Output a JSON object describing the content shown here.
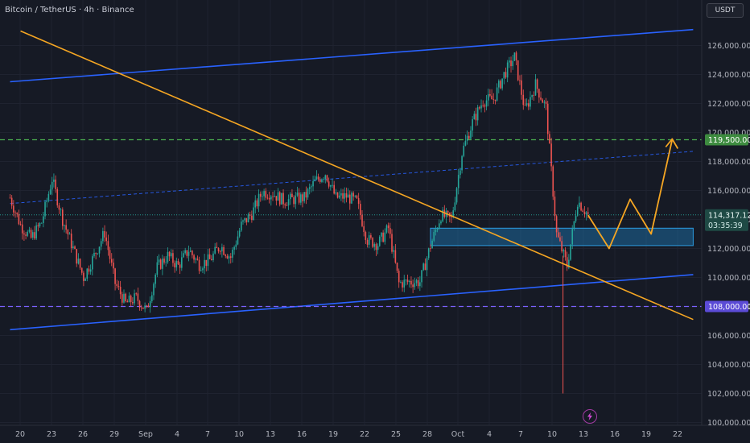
{
  "title": "Bitcoin / TetherUS · 4h · Binance",
  "currency_button": "USDT",
  "colors": {
    "background": "#161a25",
    "up": "#26a69a",
    "down": "#ef5350",
    "channel": "#2962ff",
    "trendline": "#f5a623",
    "support_zone": "#1c7bb8",
    "level_green": "#4caf50",
    "level_purple": "#7b61ff"
  },
  "chart_data": {
    "type": "candlestick",
    "title": "Bitcoin / TetherUS · 4h · Binance",
    "y_ticks": [
      "100,000.00",
      "102,000.00",
      "104,000.00",
      "106,000.00",
      "108,000.00",
      "110,000.00",
      "112,000.00",
      "114,000.00",
      "116,000.00",
      "118,000.00",
      "120,000.00",
      "122,000.00",
      "124,000.00",
      "126,000.00"
    ],
    "x_ticks": [
      "20",
      "23",
      "26",
      "29",
      "Sep",
      "4",
      "7",
      "10",
      "13",
      "16",
      "19",
      "22",
      "25",
      "28",
      "Oct",
      "4",
      "7",
      "10",
      "13",
      "16",
      "19",
      "22"
    ],
    "ylim": [
      99800,
      128200
    ],
    "price_path": [
      [
        "Aug 19",
        115500
      ],
      [
        "Aug 20",
        113600
      ],
      [
        "Aug 21",
        112700
      ],
      [
        "Aug 22",
        113800
      ],
      [
        "Aug 23",
        116800
      ],
      [
        "Aug 24",
        114000
      ],
      [
        "Aug 25",
        112000
      ],
      [
        "Aug 26",
        110000
      ],
      [
        "Aug 27",
        111500
      ],
      [
        "Aug 28",
        113100
      ],
      [
        "Aug 29",
        109600
      ],
      [
        "Aug 30",
        108200
      ],
      [
        "Aug 31",
        108600
      ],
      [
        "Sep 1",
        107700
      ],
      [
        "Sep 2",
        110700
      ],
      [
        "Sep 3",
        111500
      ],
      [
        "Sep 4",
        110800
      ],
      [
        "Sep 5",
        111900
      ],
      [
        "Sep 6",
        110900
      ],
      [
        "Sep 7",
        111200
      ],
      [
        "Sep 8",
        112200
      ],
      [
        "Sep 9",
        111400
      ],
      [
        "Sep 10",
        113600
      ],
      [
        "Sep 11",
        114400
      ],
      [
        "Sep 12",
        115900
      ],
      [
        "Sep 13",
        115800
      ],
      [
        "Sep 14",
        115300
      ],
      [
        "Sep 15",
        115400
      ],
      [
        "Sep 16",
        115500
      ],
      [
        "Sep 17",
        116600
      ],
      [
        "Sep 18",
        117200
      ],
      [
        "Sep 19",
        115500
      ],
      [
        "Sep 20",
        115600
      ],
      [
        "Sep 21",
        115200
      ],
      [
        "Sep 22",
        112600
      ],
      [
        "Sep 23",
        112300
      ],
      [
        "Sep 24",
        113400
      ],
      [
        "Sep 25",
        109600
      ],
      [
        "Sep 26",
        109700
      ],
      [
        "Sep 27",
        109700
      ],
      [
        "Sep 28",
        112200
      ],
      [
        "Sep 29",
        114300
      ],
      [
        "Sep 30",
        114000
      ],
      [
        "Oct 1",
        118600
      ],
      [
        "Oct 2",
        120700
      ],
      [
        "Oct 3",
        122200
      ],
      [
        "Oct 4",
        122300
      ],
      [
        "Oct 5",
        124000
      ],
      [
        "Oct 6",
        125200
      ],
      [
        "Oct 7",
        121500
      ],
      [
        "Oct 8",
        123300
      ],
      [
        "Oct 9",
        121700
      ],
      [
        "Oct 10",
        113000
      ],
      [
        "Oct 11",
        110800
      ],
      [
        "Oct 12",
        115300
      ],
      [
        "Oct 13",
        114317
      ]
    ],
    "crash_wick_low": 102000,
    "last_price": "114,317.12",
    "countdown": "03:35:39",
    "levels": [
      {
        "label": "119,500.00",
        "value": 119500,
        "style": "dashed",
        "color": "#4caf50"
      },
      {
        "label": "108,000.00",
        "value": 108000,
        "style": "dashed",
        "color": "#7b61ff"
      }
    ],
    "support_zone": {
      "low": 112200,
      "high": 113400,
      "from": "Sep 28",
      "to": "Oct 23"
    },
    "channel": {
      "upper": [
        [
          "Aug 19",
          123500
        ],
        [
          "Oct 23",
          127100
        ]
      ],
      "lower": [
        [
          "Aug 19",
          106400
        ],
        [
          "Oct 23",
          110200
        ]
      ],
      "mid": [
        [
          "Aug 19",
          115100
        ],
        [
          "Oct 23",
          118700
        ]
      ]
    },
    "trendline": [
      [
        "Aug 20",
        127000
      ],
      [
        "Oct 23",
        107100
      ]
    ],
    "projection": [
      [
        "Oct 13",
        114300
      ],
      [
        "Oct 15",
        112000
      ],
      [
        "Oct 17",
        115400
      ],
      [
        "Oct 19",
        113000
      ],
      [
        "Oct 21",
        119500
      ]
    ]
  }
}
